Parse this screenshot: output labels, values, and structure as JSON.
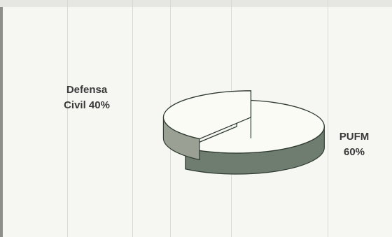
{
  "chart_data": {
    "type": "pie",
    "title": "",
    "slices": [
      {
        "label": "PUFM",
        "value": 60,
        "display_line1": "PUFM",
        "display_line2": "60%",
        "color": "#6f7c70"
      },
      {
        "label": "Defensa Civil",
        "value": 40,
        "display_line1": "Defensa",
        "display_line2": "Civil 40%",
        "color": "#9aa194"
      }
    ],
    "style": "3d-exploded",
    "legend": "none"
  }
}
